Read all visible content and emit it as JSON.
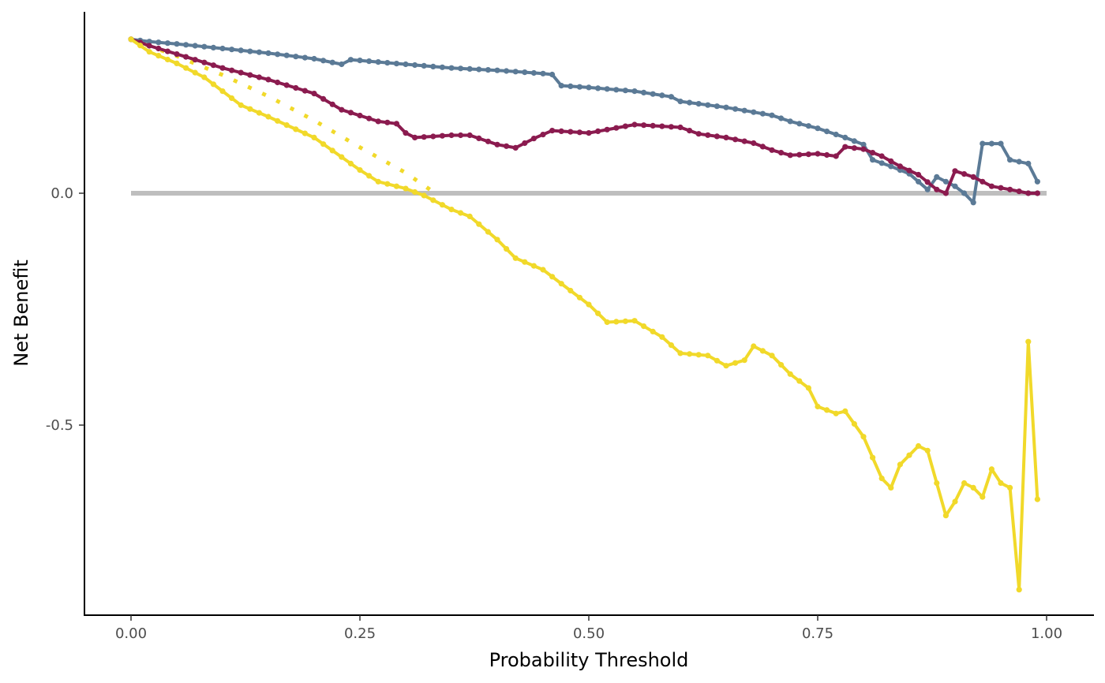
{
  "chart_data": {
    "type": "line",
    "title": "",
    "xlabel": "Probability Threshold",
    "ylabel": "Net Benefit",
    "xlim": [
      -0.05,
      1.05
    ],
    "ylim": [
      -0.91,
      0.39
    ],
    "x_ticks": [
      {
        "value": 0.0,
        "label": "0.00"
      },
      {
        "value": 0.25,
        "label": "0.25"
      },
      {
        "value": 0.5,
        "label": "0.50"
      },
      {
        "value": 0.75,
        "label": "0.75"
      },
      {
        "value": 1.0,
        "label": "1.00"
      }
    ],
    "y_ticks": [
      {
        "value": 0.0,
        "label": "0.0"
      },
      {
        "value": -0.5,
        "label": "-0.5"
      }
    ],
    "grid": false,
    "legend": "none",
    "series": [
      {
        "key": "treat-none",
        "style": "reference",
        "color": "#bebebe",
        "points": [
          [
            0.0,
            0.0
          ],
          [
            1.0,
            0.0
          ]
        ]
      },
      {
        "key": "treat-all",
        "style": "dotted",
        "color": "#f1d92a",
        "points": [
          [
            0.0,
            0.332
          ],
          [
            0.05,
            0.296
          ],
          [
            0.1,
            0.255
          ],
          [
            0.15,
            0.209
          ],
          [
            0.2,
            0.157
          ],
          [
            0.25,
            0.099
          ],
          [
            0.3,
            0.044
          ],
          [
            0.33,
            0.003
          ]
        ]
      },
      {
        "key": "model-blue",
        "style": "solid",
        "color": "#5b7a96",
        "points": [
          [
            0.0,
            0.332
          ],
          [
            0.02,
            0.327
          ],
          [
            0.05,
            0.322
          ],
          [
            0.1,
            0.312
          ],
          [
            0.15,
            0.302
          ],
          [
            0.2,
            0.29
          ],
          [
            0.23,
            0.278
          ],
          [
            0.24,
            0.288
          ],
          [
            0.3,
            0.278
          ],
          [
            0.35,
            0.27
          ],
          [
            0.4,
            0.265
          ],
          [
            0.45,
            0.258
          ],
          [
            0.46,
            0.256
          ],
          [
            0.47,
            0.232
          ],
          [
            0.5,
            0.228
          ],
          [
            0.55,
            0.22
          ],
          [
            0.59,
            0.208
          ],
          [
            0.6,
            0.198
          ],
          [
            0.65,
            0.185
          ],
          [
            0.7,
            0.168
          ],
          [
            0.72,
            0.155
          ],
          [
            0.75,
            0.14
          ],
          [
            0.78,
            0.12
          ],
          [
            0.8,
            0.105
          ],
          [
            0.81,
            0.072
          ],
          [
            0.83,
            0.058
          ],
          [
            0.85,
            0.042
          ],
          [
            0.87,
            0.008
          ],
          [
            0.88,
            0.035
          ],
          [
            0.9,
            0.015
          ],
          [
            0.91,
            0.0
          ],
          [
            0.92,
            -0.02
          ],
          [
            0.93,
            0.107
          ],
          [
            0.95,
            0.107
          ],
          [
            0.96,
            0.072
          ],
          [
            0.98,
            0.064
          ],
          [
            0.99,
            0.025
          ]
        ]
      },
      {
        "key": "model-maroon",
        "style": "solid",
        "color": "#8b1b4f",
        "points": [
          [
            0.0,
            0.332
          ],
          [
            0.02,
            0.318
          ],
          [
            0.05,
            0.3
          ],
          [
            0.1,
            0.27
          ],
          [
            0.15,
            0.245
          ],
          [
            0.2,
            0.215
          ],
          [
            0.23,
            0.18
          ],
          [
            0.27,
            0.155
          ],
          [
            0.29,
            0.15
          ],
          [
            0.3,
            0.13
          ],
          [
            0.31,
            0.12
          ],
          [
            0.35,
            0.125
          ],
          [
            0.37,
            0.125
          ],
          [
            0.4,
            0.105
          ],
          [
            0.42,
            0.098
          ],
          [
            0.44,
            0.118
          ],
          [
            0.46,
            0.135
          ],
          [
            0.5,
            0.13
          ],
          [
            0.55,
            0.148
          ],
          [
            0.6,
            0.142
          ],
          [
            0.62,
            0.128
          ],
          [
            0.65,
            0.12
          ],
          [
            0.68,
            0.108
          ],
          [
            0.7,
            0.093
          ],
          [
            0.72,
            0.082
          ],
          [
            0.75,
            0.085
          ],
          [
            0.77,
            0.08
          ],
          [
            0.78,
            0.1
          ],
          [
            0.8,
            0.095
          ],
          [
            0.82,
            0.08
          ],
          [
            0.84,
            0.058
          ],
          [
            0.86,
            0.04
          ],
          [
            0.88,
            0.008
          ],
          [
            0.89,
            0.0
          ],
          [
            0.9,
            0.048
          ],
          [
            0.92,
            0.035
          ],
          [
            0.94,
            0.015
          ],
          [
            0.96,
            0.008
          ],
          [
            0.98,
            0.0
          ],
          [
            0.99,
            0.0
          ]
        ]
      },
      {
        "key": "model-yellow",
        "style": "solid",
        "color": "#f1d92a",
        "points": [
          [
            0.0,
            0.332
          ],
          [
            0.02,
            0.305
          ],
          [
            0.05,
            0.28
          ],
          [
            0.08,
            0.25
          ],
          [
            0.1,
            0.22
          ],
          [
            0.12,
            0.19
          ],
          [
            0.15,
            0.165
          ],
          [
            0.2,
            0.12
          ],
          [
            0.25,
            0.05
          ],
          [
            0.27,
            0.025
          ],
          [
            0.3,
            0.01
          ],
          [
            0.32,
            -0.005
          ],
          [
            0.35,
            -0.035
          ],
          [
            0.37,
            -0.05
          ],
          [
            0.4,
            -0.1
          ],
          [
            0.42,
            -0.14
          ],
          [
            0.45,
            -0.165
          ],
          [
            0.48,
            -0.21
          ],
          [
            0.5,
            -0.24
          ],
          [
            0.52,
            -0.278
          ],
          [
            0.55,
            -0.275
          ],
          [
            0.58,
            -0.31
          ],
          [
            0.6,
            -0.345
          ],
          [
            0.63,
            -0.35
          ],
          [
            0.65,
            -0.372
          ],
          [
            0.67,
            -0.36
          ],
          [
            0.68,
            -0.33
          ],
          [
            0.7,
            -0.35
          ],
          [
            0.72,
            -0.39
          ],
          [
            0.74,
            -0.42
          ],
          [
            0.75,
            -0.46
          ],
          [
            0.77,
            -0.475
          ],
          [
            0.78,
            -0.47
          ],
          [
            0.8,
            -0.525
          ],
          [
            0.81,
            -0.57
          ],
          [
            0.82,
            -0.615
          ],
          [
            0.83,
            -0.635
          ],
          [
            0.84,
            -0.585
          ],
          [
            0.86,
            -0.545
          ],
          [
            0.87,
            -0.555
          ],
          [
            0.88,
            -0.625
          ],
          [
            0.89,
            -0.695
          ],
          [
            0.9,
            -0.665
          ],
          [
            0.91,
            -0.625
          ],
          [
            0.92,
            -0.635
          ],
          [
            0.93,
            -0.655
          ],
          [
            0.94,
            -0.595
          ],
          [
            0.95,
            -0.625
          ],
          [
            0.96,
            -0.635
          ],
          [
            0.97,
            -0.855
          ],
          [
            0.98,
            -0.32
          ],
          [
            0.99,
            -0.66
          ]
        ]
      }
    ]
  }
}
